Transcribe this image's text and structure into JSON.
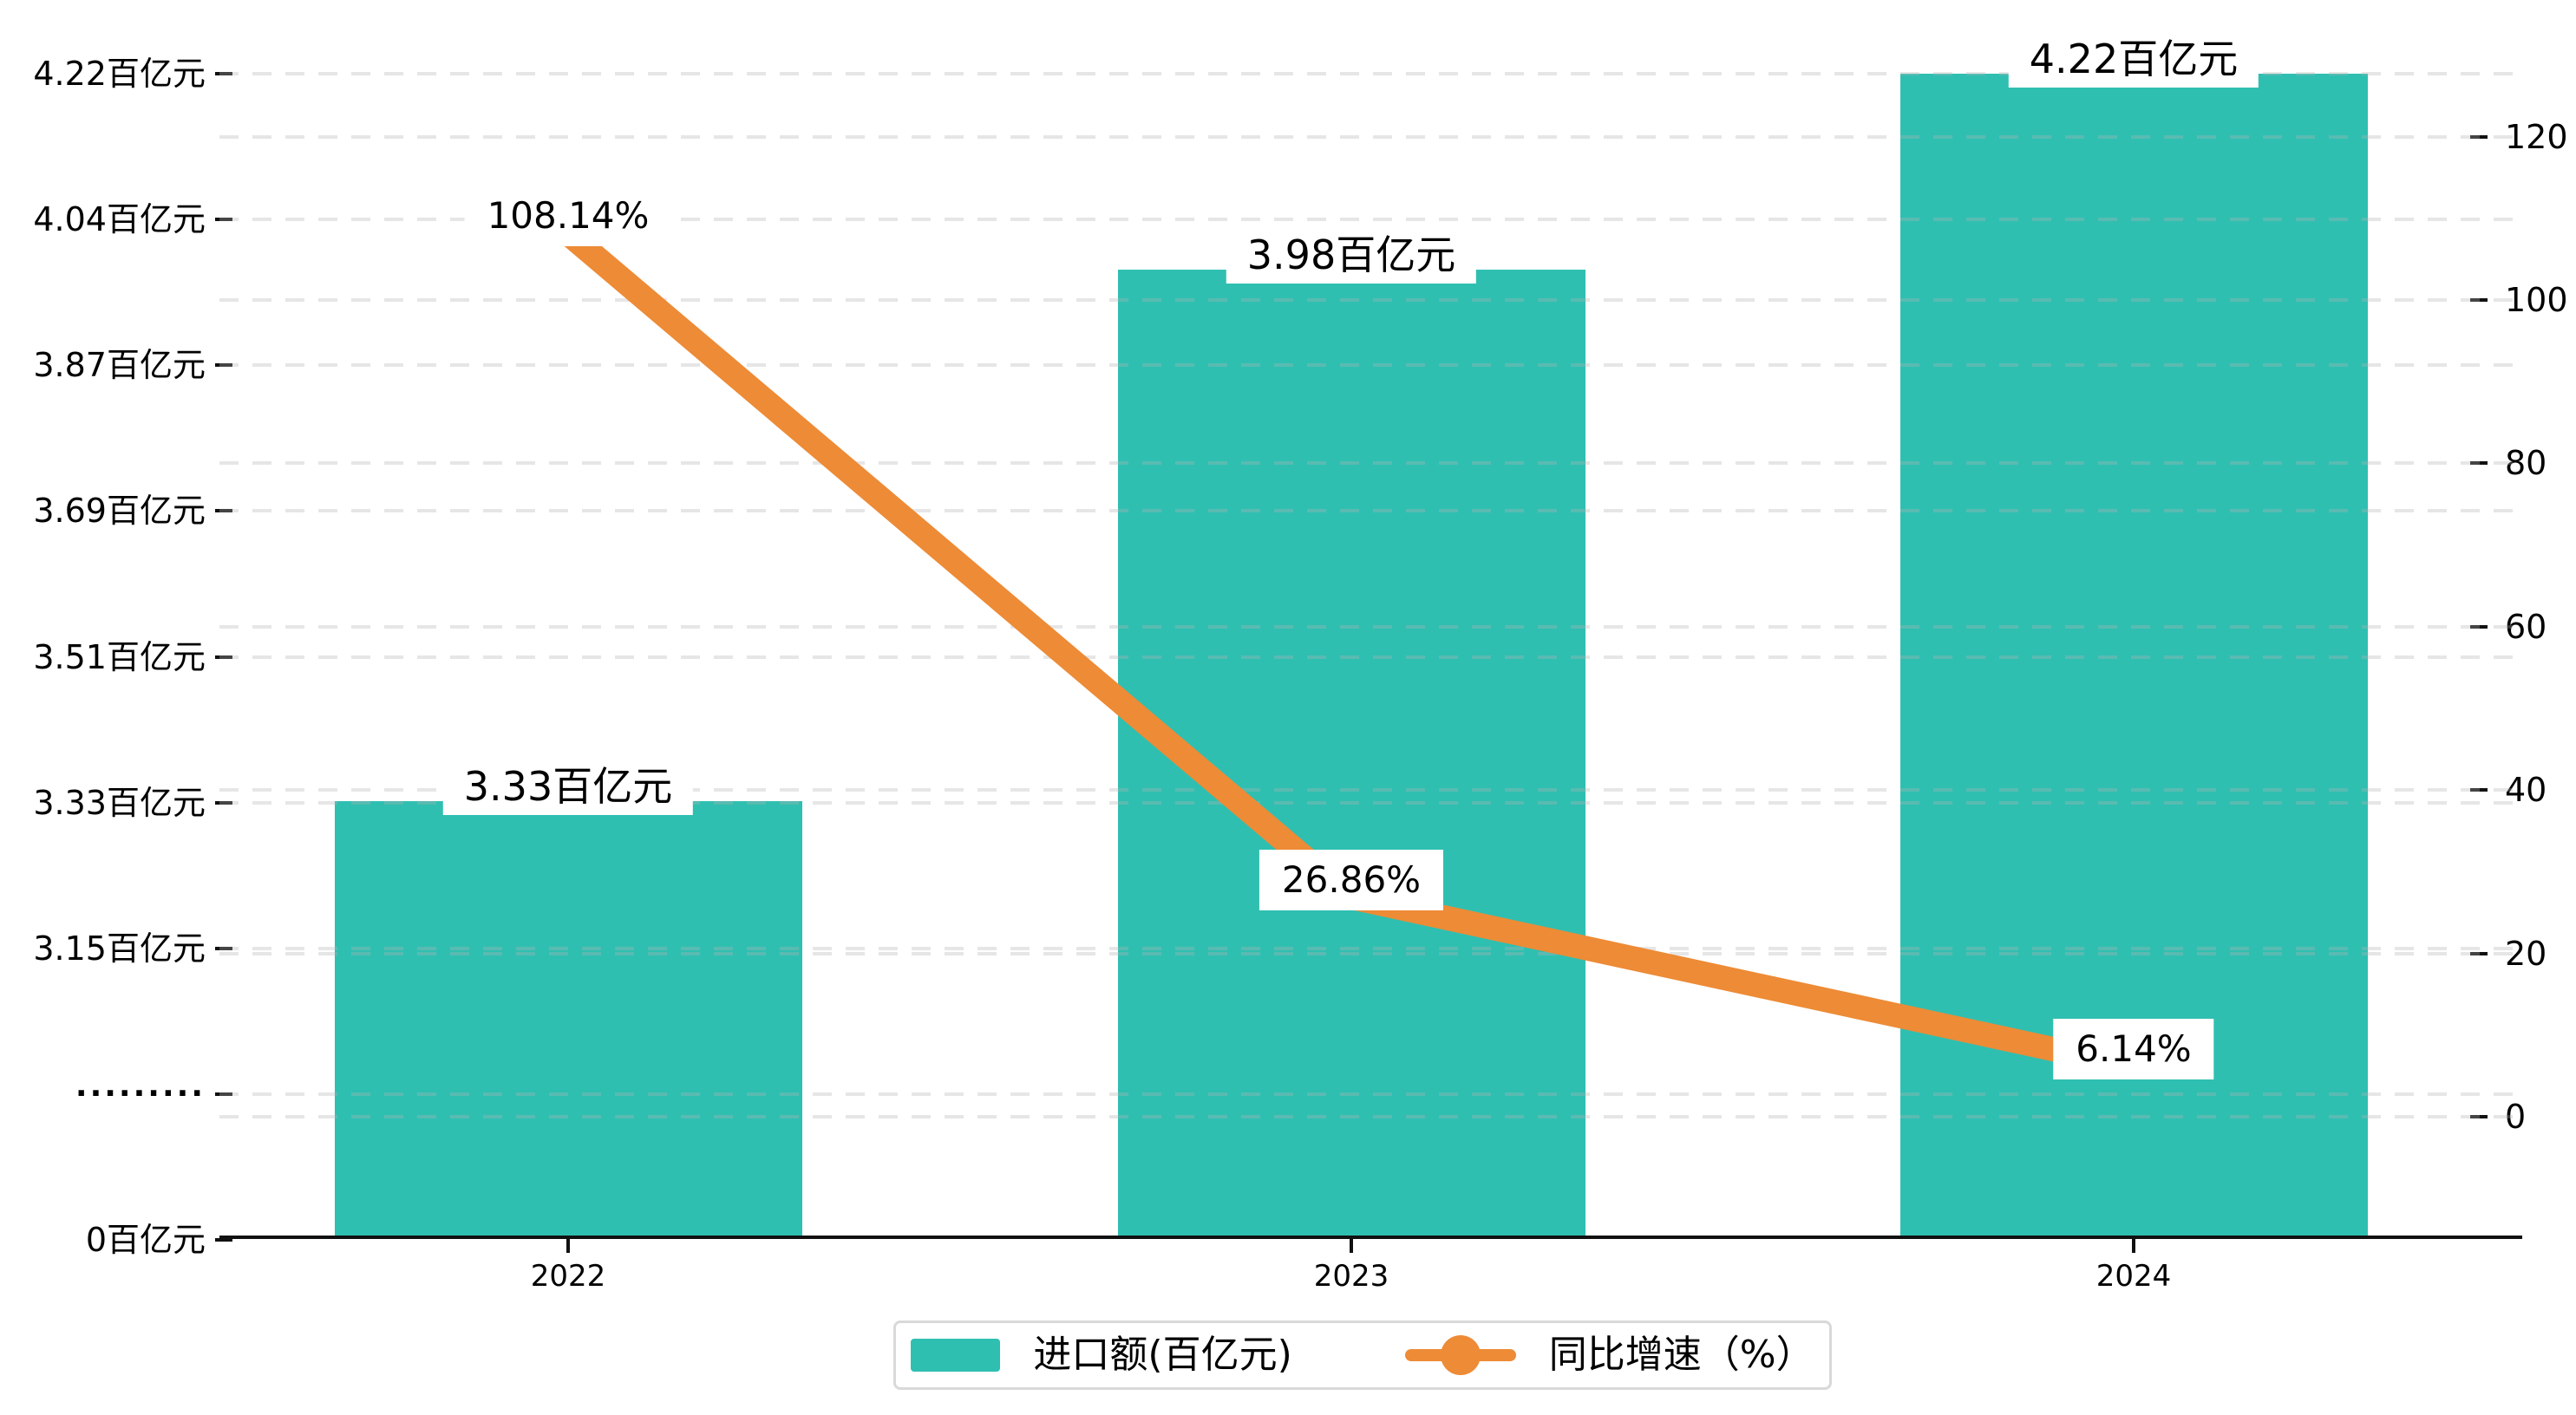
{
  "chart_data": {
    "type": "bar+line combo",
    "categories": [
      "2022",
      "2023",
      "2024"
    ],
    "series": [
      {
        "name": "进口额(百亿元)",
        "type": "bar",
        "values": [
          3.33,
          3.98,
          4.22
        ],
        "point_labels": [
          "3.33百亿元",
          "3.98百亿元",
          "4.22百亿元"
        ],
        "color": "#2FBFB1"
      },
      {
        "name": "同比增速（%）",
        "type": "line",
        "values": [
          108.14,
          26.86,
          6.14
        ],
        "point_labels": [
          "108.14%",
          "26.86%",
          "6.14%"
        ],
        "color": "#ED8B36"
      }
    ],
    "left_axis": {
      "tick_labels": [
        "4.22百亿元",
        "4.04百亿元",
        "3.87百亿元",
        "3.69百亿元",
        "3.51百亿元",
        "3.33百亿元",
        "3.15百亿元",
        "·········",
        "0百亿元"
      ],
      "has_break": true,
      "visible_value_min": 3.15,
      "visible_value_max": 4.22
    },
    "right_axis": {
      "tick_labels": [
        "0",
        "20",
        "40",
        "60",
        "80",
        "100",
        "120"
      ],
      "ticks": [
        0,
        20,
        40,
        60,
        80,
        100,
        120
      ],
      "min": 0,
      "max": 120
    },
    "legend": {
      "bar_label": "进口额(百亿元)",
      "line_label": "同比增速（%）"
    },
    "grid": "dashed horizontal, both axis families",
    "colors": {
      "bar": "#2FBFB1",
      "line": "#ED8B36",
      "axis": "#111111",
      "text": "#000000",
      "gridline": "#e8e8e8",
      "legend_border": "#d9d9d9",
      "label_background": "#ffffff"
    }
  }
}
